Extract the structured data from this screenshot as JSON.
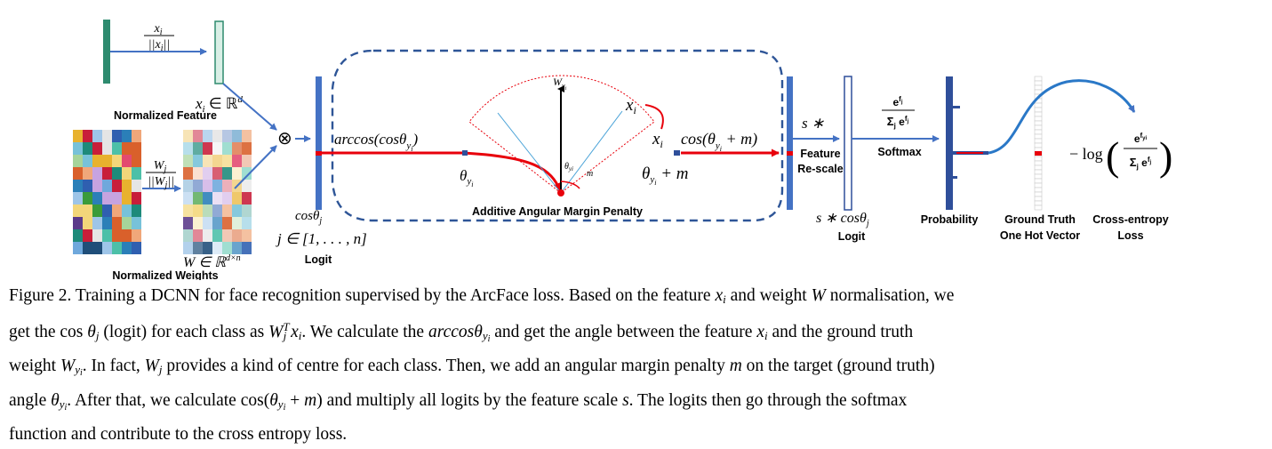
{
  "figure": {
    "labels": {
      "normalize_num": "x",
      "normalize_num_sub": "i",
      "normalize_den": "||x",
      "normalize_den_sub": "i",
      "normalize_den_end": "||",
      "feature_space": "x",
      "feature_space_sub": "i",
      "feature_space_rest": " ∈ ℝ",
      "feature_space_sup": "d",
      "normalized_feature": "Normalized Feature",
      "weights_num": "W",
      "weights_num_sub": "j",
      "weights_den": "||W",
      "weights_den_sub": "j",
      "weights_den_end": "||",
      "weights_space": "W ∈ ℝ",
      "weights_space_sup": "d×n",
      "normalized_weights": "Normalized Weights",
      "otimes": "⊗",
      "cos_theta_j": "cosθ",
      "cos_theta_j_sub": "j",
      "j_range": "j ∈ [1, . . . , n]",
      "logit": "Logit",
      "arccos": "arccos(cosθ",
      "arccos_sub": "y",
      "arccos_subsub": "i",
      "arccos_end": ")",
      "w_yi": "W",
      "w_yi_sub": "y",
      "w_yi_subsub": "i",
      "x_i_top": "x",
      "x_i_top_sub": "i",
      "x_i_mid": "x",
      "x_i_mid_sub": "i",
      "theta_yi": "θ",
      "theta_yi_sub": "y",
      "theta_yi_subsub": "i",
      "theta_small": "θ",
      "theta_small_sub": "yi",
      "m_small": "m",
      "theta_plus_m": "θ",
      "theta_plus_m_sub": "y",
      "theta_plus_m_subsub": "i",
      "theta_plus_m_end": " + m",
      "cos_margin": "cos(θ",
      "cos_margin_sub": "y",
      "cos_margin_subsub": "i",
      "cos_margin_end": " + m)",
      "margin_penalty": "Additive Angular Margin Penalty",
      "s_times": "s ∗",
      "feature_rescale_1": "Feature",
      "feature_rescale_2": "Re-scale",
      "s_cos": "s ∗ cosθ",
      "s_cos_sub": "j",
      "logit2": "Logit",
      "softmax_num": "e",
      "softmax_num_sup": "f",
      "softmax_num_supsub": "j",
      "softmax_den": "Σ",
      "softmax_den_sub": "j",
      "softmax_den_e": " e",
      "softmax_den_sup": "f",
      "softmax_den_supsub": "j",
      "softmax": "Softmax",
      "probability": "Probability",
      "ground_truth_1": "Ground Truth",
      "ground_truth_2": "One Hot Vector",
      "ce_prefix": "− log",
      "ce_num": "e",
      "ce_num_sup": "f",
      "ce_num_supsub": "yi",
      "ce_den": "Σ",
      "ce_den_sub": "j",
      "ce_den_e": " e",
      "ce_den_sup": "f",
      "ce_den_supsub": "j",
      "cross_entropy_1": "Cross-entropy",
      "cross_entropy_2": "Loss"
    },
    "colors": {
      "blue": "#4472c4",
      "dark_blue": "#2f4f9a",
      "red": "#e8000b",
      "green": "#2e8b6f",
      "light_green": "#d9efe6",
      "dash_blue": "#2e5597"
    }
  },
  "caption": {
    "lines": [
      [
        {
          "t": "Figure 2. Training a DCNN for face recognition supervised by the ArcFace loss. Based on the feature "
        },
        {
          "t": "x",
          "i": true
        },
        {
          "t": "i",
          "i": true,
          "sub": true
        },
        {
          "t": " and weight "
        },
        {
          "t": "W",
          "i": true
        },
        {
          "t": " normalisation, we"
        }
      ],
      [
        {
          "t": "get the cos "
        },
        {
          "t": "θ",
          "i": true
        },
        {
          "t": "j",
          "i": true,
          "sub": true
        },
        {
          "t": " (logit) for each class as "
        },
        {
          "t": "W",
          "i": true
        },
        {
          "t": "T",
          "i": true,
          "sup": true
        },
        {
          "t": "j",
          "i": true,
          "sub": true
        },
        {
          "t": " x",
          "i": true
        },
        {
          "t": "i",
          "i": true,
          "sub": true
        },
        {
          "t": ". We calculate the "
        },
        {
          "t": "arccosθ",
          "i": true
        },
        {
          "t": "y",
          "i": true,
          "sub": true
        },
        {
          "t": "i",
          "i": true,
          "subsub": true
        },
        {
          "t": " and get the angle between the feature "
        },
        {
          "t": "x",
          "i": true
        },
        {
          "t": "i",
          "i": true,
          "sub": true
        },
        {
          "t": " and the ground truth"
        }
      ],
      [
        {
          "t": "weight "
        },
        {
          "t": "W",
          "i": true
        },
        {
          "t": "y",
          "i": true,
          "sub": true
        },
        {
          "t": "i",
          "i": true,
          "subsub": true
        },
        {
          "t": ". In fact, "
        },
        {
          "t": "W",
          "i": true
        },
        {
          "t": "j",
          "i": true,
          "sub": true
        },
        {
          "t": " provides a kind of centre for each class. Then, we add an angular margin penalty "
        },
        {
          "t": "m",
          "i": true
        },
        {
          "t": " on the target (ground truth)"
        }
      ],
      [
        {
          "t": "angle "
        },
        {
          "t": "θ",
          "i": true
        },
        {
          "t": "y",
          "i": true,
          "sub": true
        },
        {
          "t": "i",
          "i": true,
          "subsub": true
        },
        {
          "t": ". After that, we calculate cos("
        },
        {
          "t": "θ",
          "i": true
        },
        {
          "t": "y",
          "i": true,
          "sub": true
        },
        {
          "t": "i",
          "i": true,
          "subsub": true
        },
        {
          "t": " + "
        },
        {
          "t": "m",
          "i": true
        },
        {
          "t": ") and multiply all logits by the feature scale "
        },
        {
          "t": "s",
          "i": true
        },
        {
          "t": ". The logits then go through the softmax"
        }
      ],
      [
        {
          "t": "function and contribute to the cross entropy loss."
        }
      ]
    ]
  }
}
